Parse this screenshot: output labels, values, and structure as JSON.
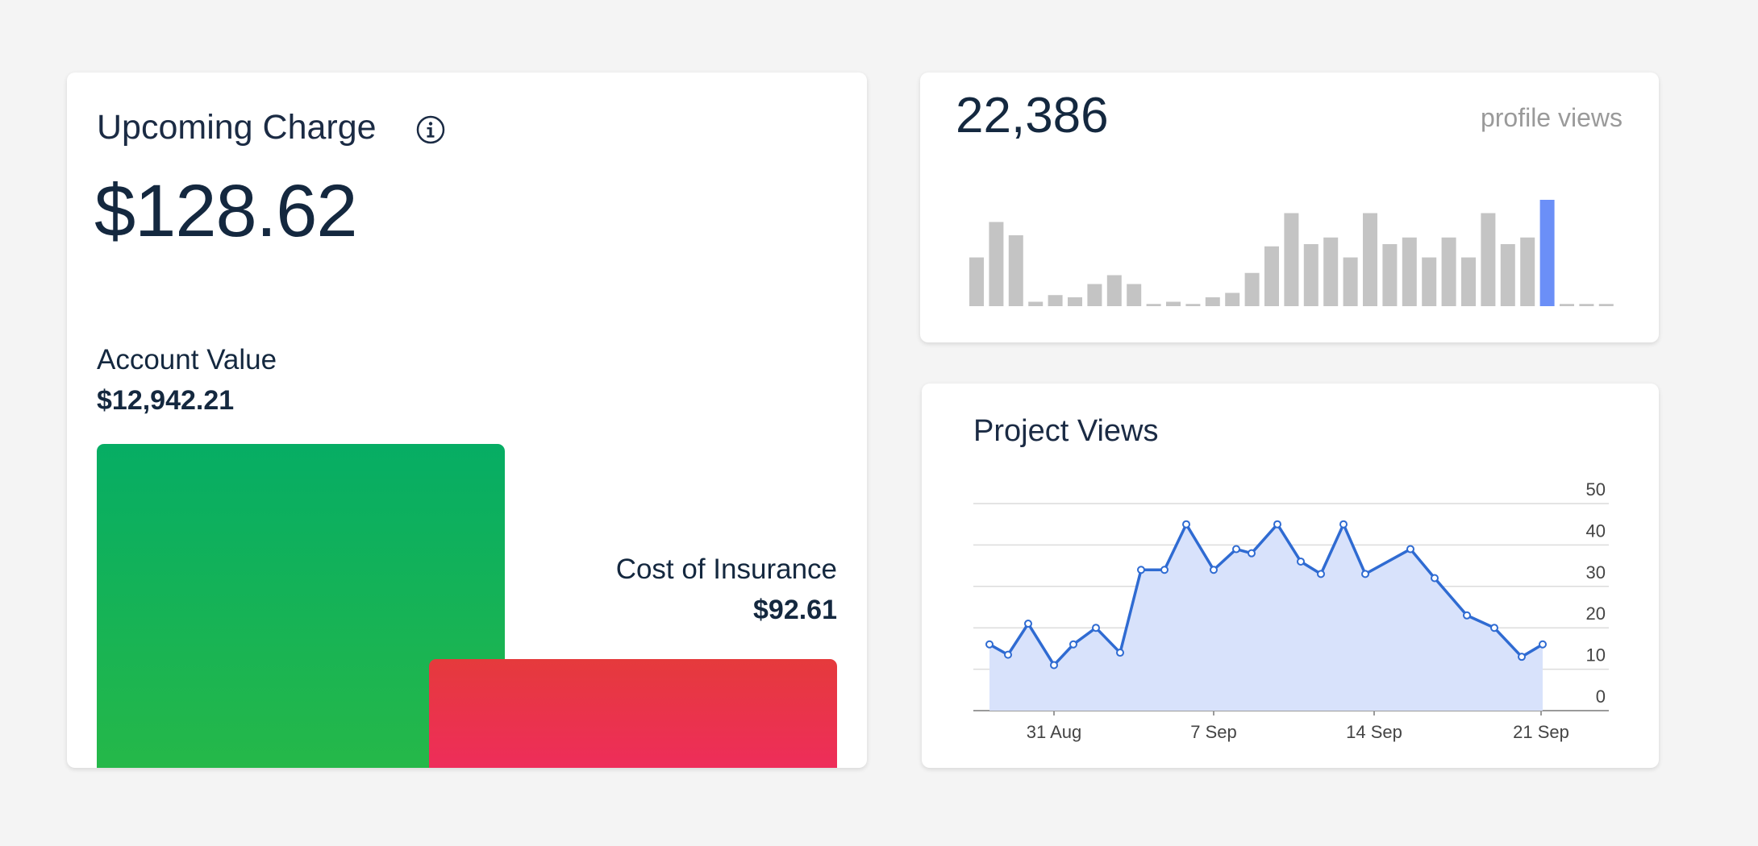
{
  "upcoming_charge": {
    "title": "Upcoming Charge",
    "amount": "$128.62",
    "account_value_label": "Account Value",
    "account_value": "$12,942.21",
    "insurance_label": "Cost of Insurance",
    "insurance_value": "$92.61",
    "colors": {
      "account_bar": "#0fae5b",
      "insurance_bar": "#ea3550"
    }
  },
  "profile_views": {
    "total": "22,386",
    "label": "profile views",
    "chart_data": {
      "type": "bar",
      "values": [
        11,
        19,
        16,
        1,
        2.5,
        2,
        5,
        7,
        5,
        0.5,
        1,
        0.5,
        2,
        3,
        7.5,
        13.5,
        21,
        14,
        15.5,
        11,
        21,
        14,
        15.5,
        11,
        15.5,
        11,
        21,
        14,
        15.5,
        24,
        0.5,
        0.5,
        0.5
      ],
      "highlight_index": 29,
      "colors": {
        "bar": "#c4c4c4",
        "highlight": "#6b8ff7"
      }
    }
  },
  "project_views": {
    "title": "Project Views",
    "chart_data": {
      "type": "area",
      "ylim": [
        0,
        50
      ],
      "y_ticks": [
        0,
        10,
        20,
        30,
        40,
        50
      ],
      "x_ticks": [
        "31 Aug",
        "7 Sep",
        "14 Sep",
        "21 Sep"
      ],
      "x_start": "28 Aug",
      "values": [
        16,
        13.5,
        21,
        11,
        16,
        20,
        14,
        34,
        34,
        45,
        34,
        39,
        38,
        45,
        36,
        33,
        45,
        33,
        39,
        32,
        23,
        20,
        13,
        16
      ],
      "dates": [
        "28 Aug",
        "29 Aug",
        "30 Aug",
        "31 Aug",
        "1 Sep",
        "2 Sep",
        "3 Sep",
        "4 Sep",
        "5 Sep",
        "6 Sep",
        "7 Sep",
        "8 Sep",
        "9 Sep",
        "10 Sep",
        "11 Sep",
        "12 Sep",
        "13 Sep",
        "14 Sep",
        "17 Sep",
        "18 Sep",
        "19 Sep",
        "20 Sep",
        "21 Sep",
        "21 Sep"
      ],
      "colors": {
        "line": "#2f6bd2",
        "fill": "#d8e2fb",
        "grid": "#dcdcdc"
      }
    }
  }
}
